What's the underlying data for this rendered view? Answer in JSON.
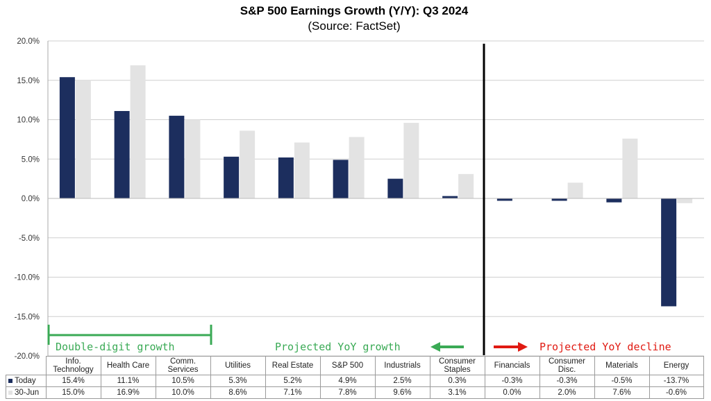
{
  "title": "S&P 500 Earnings Growth (Y/Y): Q3 2024",
  "subtitle": "(Source: FactSet)",
  "colors": {
    "today": "#1c2e5e",
    "jun30": "#e3e3e3",
    "green": "#3aaa55",
    "red": "#e01a12",
    "divider": "#000000",
    "grid": "#cfcfcf"
  },
  "annotations": {
    "double_digit": "Double-digit growth",
    "growth": "Projected YoY growth",
    "decline": "Projected YoY decline"
  },
  "chart_data": {
    "type": "bar",
    "title": "S&P 500 Earnings Growth (Y/Y): Q3 2024",
    "subtitle": "(Source: FactSet)",
    "xlabel": "",
    "ylabel": "",
    "ylim": [
      -20,
      20
    ],
    "yticks": [
      20,
      15,
      10,
      5,
      0,
      -5,
      -10,
      -15,
      -20
    ],
    "ytick_labels": [
      "20.0%",
      "15.0%",
      "10.0%",
      "5.0%",
      "0.0%",
      "-5.0%",
      "-10.0%",
      "-15.0%",
      "-20.0%"
    ],
    "grid": true,
    "legend": "table-below",
    "categories": [
      "Info. Technology",
      "Health Care",
      "Comm. Services",
      "Utilities",
      "Real Estate",
      "S&P 500",
      "Industrials",
      "Consumer Staples",
      "Financials",
      "Consumer Disc.",
      "Materials",
      "Energy"
    ],
    "category_lines": [
      [
        "Info.",
        "Technology"
      ],
      [
        "Health Care"
      ],
      [
        "Comm.",
        "Services"
      ],
      [
        "Utilities"
      ],
      [
        "Real Estate"
      ],
      [
        "S&P 500"
      ],
      [
        "Industrials"
      ],
      [
        "Consumer",
        "Staples"
      ],
      [
        "Financials"
      ],
      [
        "Consumer",
        "Disc."
      ],
      [
        "Materials"
      ],
      [
        "Energy"
      ]
    ],
    "series": [
      {
        "name": "Today",
        "values": [
          15.4,
          11.1,
          10.5,
          5.3,
          5.2,
          4.9,
          2.5,
          0.3,
          -0.3,
          -0.3,
          -0.5,
          -13.7
        ],
        "labels": [
          "15.4%",
          "11.1%",
          "10.5%",
          "5.3%",
          "5.2%",
          "4.9%",
          "2.5%",
          "0.3%",
          "-0.3%",
          "-0.3%",
          "-0.5%",
          "-13.7%"
        ]
      },
      {
        "name": "30-Jun",
        "values": [
          15.0,
          16.9,
          10.0,
          8.6,
          7.1,
          7.8,
          9.6,
          3.1,
          0.0,
          2.0,
          7.6,
          -0.6
        ],
        "labels": [
          "15.0%",
          "16.9%",
          "10.0%",
          "8.6%",
          "7.1%",
          "7.8%",
          "9.6%",
          "3.1%",
          "0.0%",
          "2.0%",
          "7.6%",
          "-0.6%"
        ]
      }
    ],
    "divider_after_category": "Consumer Staples"
  }
}
